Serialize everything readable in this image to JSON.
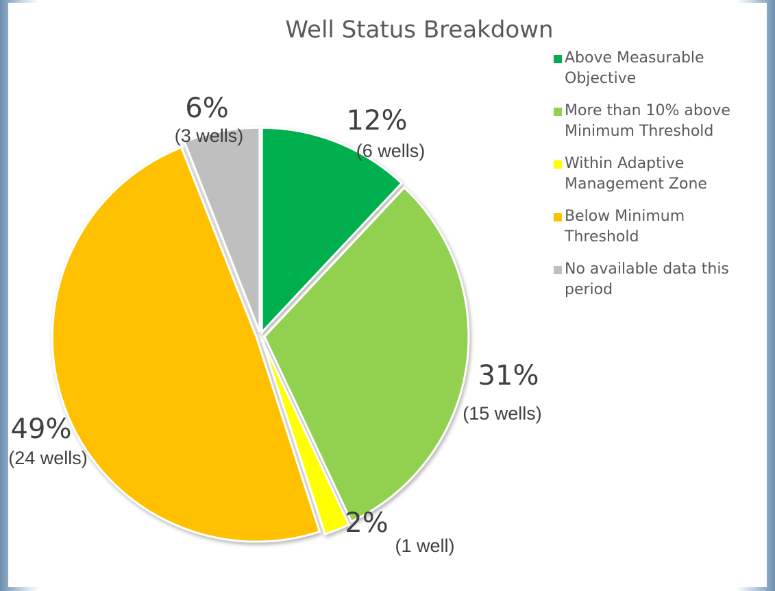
{
  "chart_data": {
    "type": "pie",
    "title": "Well Status Breakdown",
    "categories": [
      "Above Measurable Objective",
      "More than 10% above Minimum Threshold",
      "Within Adaptive Management Zone",
      "Below Minimum Threshold",
      "No available data this period"
    ],
    "values": [
      12,
      31,
      2,
      49,
      6
    ],
    "value_labels": [
      "12%",
      "31%",
      "2%",
      "49%",
      "6%"
    ],
    "well_labels": [
      "(6 wells)",
      "(15 wells)",
      "(1 well)",
      "(24 wells)",
      "(3 wells)"
    ],
    "colors": [
      "#00b050",
      "#92d050",
      "#ffff00",
      "#ffc000",
      "#bfbfbf"
    ],
    "legend": "right"
  }
}
